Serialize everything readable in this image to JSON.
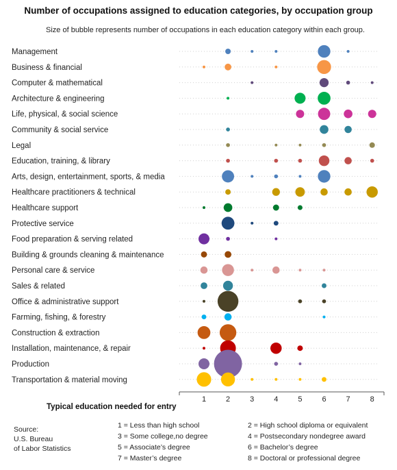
{
  "chart_data": {
    "type": "bubble",
    "title": "Number of occupations assigned to education categories, by occupation group",
    "subtitle": "Size of bubble represents number of occupations in each education category within each group.",
    "xlabel": "Typical education needed for entry",
    "x_ticks": [
      1,
      2,
      3,
      4,
      5,
      6,
      7,
      8
    ],
    "source": [
      "Source:",
      "U.S. Bureau",
      "of Labor Statistics"
    ],
    "legend": [
      "1 = Less than high school",
      "2 = High school diploma or equivalent",
      "3 = Some college,no degree",
      "4 = Postsecondary nondegree award",
      "5 = Associate’s degree",
      "6 = Bachelor’s degree",
      "7 = Master’s degree",
      "8 = Doctoral or professional degree"
    ],
    "groups": [
      {
        "name": "Management",
        "color": "#4f81bd",
        "values": [
          0,
          4,
          1,
          1,
          0,
          21,
          1,
          0
        ]
      },
      {
        "name": "Business & financial",
        "color": "#f79646",
        "values": [
          1,
          6,
          0,
          1,
          0,
          26,
          0,
          0
        ]
      },
      {
        "name": "Computer & mathematical",
        "color": "#604a7b",
        "values": [
          0,
          0,
          1,
          0,
          0,
          11,
          2,
          1
        ]
      },
      {
        "name": "Architecture & engineering",
        "color": "#00b050",
        "values": [
          0,
          1,
          0,
          0,
          16,
          22,
          0,
          0
        ]
      },
      {
        "name": "Life, physical, & social science",
        "color": "#cc3399",
        "values": [
          0,
          0,
          0,
          0,
          9,
          20,
          10,
          9
        ]
      },
      {
        "name": "Community & social service",
        "color": "#31849b",
        "values": [
          0,
          2,
          0,
          0,
          0,
          10,
          7,
          0
        ]
      },
      {
        "name": "Legal",
        "color": "#948a54",
        "values": [
          0,
          2,
          0,
          1,
          1,
          2,
          0,
          4
        ]
      },
      {
        "name": "Education, training, & library",
        "color": "#c0504d",
        "values": [
          0,
          2,
          0,
          2,
          2,
          15,
          7,
          2
        ]
      },
      {
        "name": "Arts, design, entertainment, sports, & media",
        "color": "#4f81bd",
        "values": [
          0,
          20,
          1,
          2,
          1,
          21,
          0,
          0
        ]
      },
      {
        "name": "Healthcare practitioners & technical",
        "color": "#c89a00",
        "values": [
          0,
          4,
          0,
          8,
          12,
          7,
          7,
          17
        ]
      },
      {
        "name": "Healthcare support",
        "color": "#007a2e",
        "values": [
          1,
          10,
          0,
          5,
          3,
          0,
          0,
          0
        ]
      },
      {
        "name": "Protective service",
        "color": "#1f497d",
        "values": [
          0,
          22,
          1,
          3,
          0,
          0,
          0,
          0
        ]
      },
      {
        "name": "Food preparation & serving related",
        "color": "#7030a0",
        "values": [
          16,
          2,
          0,
          1,
          0,
          0,
          0,
          0
        ]
      },
      {
        "name": "Building & grounds cleaning & maintenance",
        "color": "#974806",
        "values": [
          5,
          6,
          0,
          0,
          0,
          0,
          0,
          0
        ]
      },
      {
        "name": "Personal care & service",
        "color": "#d99694",
        "values": [
          7,
          19,
          1,
          7,
          1,
          1,
          0,
          0
        ]
      },
      {
        "name": "Sales & related",
        "color": "#31849b",
        "values": [
          6,
          13,
          0,
          0,
          0,
          3,
          0,
          0
        ]
      },
      {
        "name": "Office & administrative support",
        "color": "#4a4227",
        "values": [
          1,
          58,
          0,
          0,
          2,
          2,
          0,
          0
        ]
      },
      {
        "name": "Farming, fishing, & forestry",
        "color": "#00b0f0",
        "values": [
          3,
          7,
          0,
          0,
          0,
          1,
          0,
          0
        ]
      },
      {
        "name": "Construction & extraction",
        "color": "#c55a11",
        "values": [
          22,
          37,
          0,
          0,
          0,
          0,
          0,
          0
        ]
      },
      {
        "name": "Installation, maintenance, & repair",
        "color": "#c00000",
        "values": [
          1,
          33,
          0,
          17,
          4,
          0,
          0,
          0
        ]
      },
      {
        "name": "Production",
        "color": "#8064a2",
        "values": [
          16,
          105,
          0,
          2,
          1,
          0,
          0,
          0
        ]
      },
      {
        "name": "Transportation & material moving",
        "color": "#ffc000",
        "values": [
          28,
          26,
          1,
          1,
          1,
          3,
          0,
          0
        ]
      }
    ]
  }
}
